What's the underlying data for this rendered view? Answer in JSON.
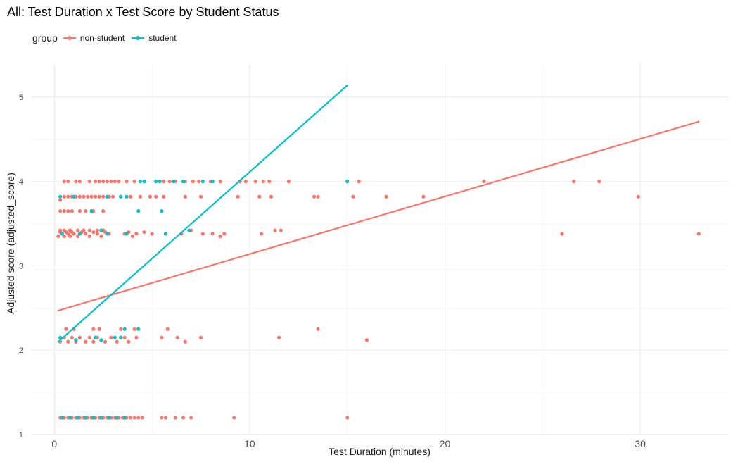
{
  "chart_data": {
    "type": "scatter",
    "title": "All: Test Duration x Test Score by Student Status",
    "xlabel": "Test Duration (minutes)",
    "ylabel": "Adjusted score (adjusted_score)",
    "xlim": [
      -1.2,
      34.5
    ],
    "ylim": [
      1,
      5.4
    ],
    "x_ticks": [
      0,
      10,
      20,
      30
    ],
    "y_ticks": [
      1,
      2,
      3,
      4,
      5
    ],
    "x_tick_labels": [
      "0",
      "10",
      "20",
      "30"
    ],
    "y_tick_labels": [
      "1",
      "2",
      "3",
      "4",
      "5"
    ],
    "grid": true,
    "legend_position": "top-left",
    "legend": {
      "title": "group",
      "entries": [
        "non-student",
        "student"
      ]
    },
    "series": [
      {
        "name": "non-student",
        "color": "#F8766D",
        "points": [
          [
            0.3,
            1.2
          ],
          [
            0.5,
            1.2
          ],
          [
            0.7,
            1.2
          ],
          [
            0.9,
            1.2
          ],
          [
            1.1,
            1.2
          ],
          [
            1.3,
            1.2
          ],
          [
            1.5,
            1.2
          ],
          [
            1.7,
            1.2
          ],
          [
            1.9,
            1.2
          ],
          [
            2.1,
            1.2
          ],
          [
            2.3,
            1.2
          ],
          [
            2.5,
            1.2
          ],
          [
            2.7,
            1.2
          ],
          [
            2.9,
            1.2
          ],
          [
            3.1,
            1.2
          ],
          [
            3.3,
            1.2
          ],
          [
            3.5,
            1.2
          ],
          [
            3.7,
            1.2
          ],
          [
            3.9,
            1.2
          ],
          [
            4.1,
            1.2
          ],
          [
            4.3,
            1.2
          ],
          [
            4.5,
            1.2
          ],
          [
            5.5,
            1.2
          ],
          [
            5.7,
            1.2
          ],
          [
            6.2,
            1.2
          ],
          [
            6.6,
            1.2
          ],
          [
            7.0,
            1.2
          ],
          [
            9.2,
            1.2
          ],
          [
            15.0,
            1.2
          ],
          [
            0.3,
            2.1
          ],
          [
            0.5,
            2.15
          ],
          [
            0.7,
            2.1
          ],
          [
            0.9,
            2.15
          ],
          [
            1.1,
            2.1
          ],
          [
            1.3,
            2.15
          ],
          [
            1.6,
            2.1
          ],
          [
            1.8,
            2.15
          ],
          [
            2.0,
            2.1
          ],
          [
            2.2,
            2.15
          ],
          [
            2.6,
            2.1
          ],
          [
            2.9,
            2.15
          ],
          [
            3.2,
            2.1
          ],
          [
            3.6,
            2.15
          ],
          [
            3.8,
            2.1
          ],
          [
            4.2,
            2.15
          ],
          [
            5.5,
            2.15
          ],
          [
            6.3,
            2.15
          ],
          [
            6.7,
            2.1
          ],
          [
            7.5,
            2.15
          ],
          [
            11.5,
            2.15
          ],
          [
            16.0,
            2.12
          ],
          [
            0.6,
            2.25
          ],
          [
            1.0,
            2.25
          ],
          [
            2.0,
            2.25
          ],
          [
            2.3,
            2.25
          ],
          [
            3.4,
            2.25
          ],
          [
            4.1,
            2.25
          ],
          [
            5.8,
            2.25
          ],
          [
            13.5,
            2.25
          ],
          [
            0.2,
            3.35
          ],
          [
            0.3,
            3.4
          ],
          [
            0.4,
            3.38
          ],
          [
            0.5,
            3.35
          ],
          [
            0.6,
            3.4
          ],
          [
            0.7,
            3.38
          ],
          [
            0.8,
            3.35
          ],
          [
            0.9,
            3.4
          ],
          [
            1.0,
            3.38
          ],
          [
            1.2,
            3.35
          ],
          [
            1.4,
            3.4
          ],
          [
            1.6,
            3.38
          ],
          [
            1.8,
            3.35
          ],
          [
            2.0,
            3.4
          ],
          [
            2.2,
            3.38
          ],
          [
            2.4,
            3.35
          ],
          [
            2.6,
            3.4
          ],
          [
            2.8,
            3.38
          ],
          [
            3.6,
            3.38
          ],
          [
            3.8,
            3.4
          ],
          [
            4.0,
            3.35
          ],
          [
            4.2,
            3.38
          ],
          [
            4.6,
            3.4
          ],
          [
            5.0,
            3.38
          ],
          [
            5.7,
            3.38
          ],
          [
            6.5,
            3.38
          ],
          [
            7.0,
            3.42
          ],
          [
            7.6,
            3.38
          ],
          [
            8.1,
            3.38
          ],
          [
            8.5,
            3.35
          ],
          [
            8.7,
            3.38
          ],
          [
            10.6,
            3.38
          ],
          [
            11.3,
            3.42
          ],
          [
            11.6,
            3.42
          ],
          [
            26.0,
            3.38
          ],
          [
            33.0,
            3.38
          ],
          [
            0.3,
            3.42
          ],
          [
            0.5,
            3.42
          ],
          [
            0.8,
            3.42
          ],
          [
            1.2,
            3.42
          ],
          [
            1.5,
            3.42
          ],
          [
            1.8,
            3.42
          ],
          [
            2.2,
            3.42
          ],
          [
            2.5,
            3.42
          ],
          [
            0.3,
            3.65
          ],
          [
            0.5,
            3.65
          ],
          [
            0.7,
            3.65
          ],
          [
            0.9,
            3.65
          ],
          [
            1.3,
            3.65
          ],
          [
            1.6,
            3.65
          ],
          [
            2.0,
            3.65
          ],
          [
            2.5,
            3.65
          ],
          [
            0.3,
            3.78
          ],
          [
            0.5,
            3.82
          ],
          [
            0.7,
            3.82
          ],
          [
            0.9,
            3.82
          ],
          [
            1.1,
            3.82
          ],
          [
            1.3,
            3.82
          ],
          [
            1.5,
            3.82
          ],
          [
            1.7,
            3.82
          ],
          [
            1.9,
            3.82
          ],
          [
            2.1,
            3.82
          ],
          [
            2.3,
            3.82
          ],
          [
            2.5,
            3.82
          ],
          [
            2.8,
            3.82
          ],
          [
            3.0,
            3.82
          ],
          [
            3.4,
            3.82
          ],
          [
            3.9,
            3.82
          ],
          [
            4.4,
            3.82
          ],
          [
            4.9,
            3.82
          ],
          [
            5.2,
            3.82
          ],
          [
            5.6,
            3.82
          ],
          [
            6.7,
            3.82
          ],
          [
            7.5,
            3.82
          ],
          [
            9.4,
            3.82
          ],
          [
            10.5,
            3.82
          ],
          [
            11.1,
            3.82
          ],
          [
            13.3,
            3.82
          ],
          [
            13.5,
            3.82
          ],
          [
            15.3,
            3.82
          ],
          [
            17.0,
            3.82
          ],
          [
            18.9,
            3.82
          ],
          [
            29.9,
            3.82
          ],
          [
            0.5,
            4.0
          ],
          [
            0.7,
            4.0
          ],
          [
            1.1,
            4.0
          ],
          [
            1.3,
            4.0
          ],
          [
            1.8,
            4.0
          ],
          [
            2.1,
            4.0
          ],
          [
            2.3,
            4.0
          ],
          [
            2.5,
            4.0
          ],
          [
            2.7,
            4.0
          ],
          [
            2.9,
            4.0
          ],
          [
            3.1,
            4.0
          ],
          [
            3.3,
            4.0
          ],
          [
            3.7,
            4.0
          ],
          [
            4.1,
            4.0
          ],
          [
            5.6,
            4.0
          ],
          [
            5.9,
            4.0
          ],
          [
            6.2,
            4.0
          ],
          [
            6.7,
            4.0
          ],
          [
            7.1,
            4.0
          ],
          [
            7.4,
            4.0
          ],
          [
            8.0,
            4.0
          ],
          [
            8.5,
            4.0
          ],
          [
            9.5,
            4.0
          ],
          [
            9.8,
            4.0
          ],
          [
            10.3,
            4.0
          ],
          [
            10.7,
            4.0
          ],
          [
            11.0,
            4.0
          ],
          [
            12.0,
            4.0
          ],
          [
            15.6,
            4.0
          ],
          [
            22.0,
            4.0
          ],
          [
            26.6,
            4.0
          ],
          [
            27.9,
            4.0
          ]
        ],
        "trend": {
          "x0": 0.2,
          "y0": 2.47,
          "x1": 33.0,
          "y1": 4.71
        }
      },
      {
        "name": "student",
        "color": "#00BFC4",
        "points": [
          [
            0.4,
            1.2
          ],
          [
            0.8,
            1.2
          ],
          [
            1.2,
            1.2
          ],
          [
            1.6,
            1.2
          ],
          [
            2.0,
            1.2
          ],
          [
            2.4,
            1.2
          ],
          [
            2.8,
            1.2
          ],
          [
            3.2,
            1.2
          ],
          [
            3.6,
            1.2
          ],
          [
            0.3,
            2.15
          ],
          [
            1.1,
            2.12
          ],
          [
            2.4,
            2.12
          ],
          [
            2.1,
            2.15
          ],
          [
            3.1,
            2.15
          ],
          [
            3.4,
            2.15
          ],
          [
            3.6,
            2.25
          ],
          [
            4.3,
            2.25
          ],
          [
            0.4,
            3.38
          ],
          [
            1.3,
            3.38
          ],
          [
            2.4,
            3.42
          ],
          [
            2.7,
            3.38
          ],
          [
            3.7,
            3.38
          ],
          [
            5.7,
            3.38
          ],
          [
            6.9,
            3.42
          ],
          [
            0.3,
            3.82
          ],
          [
            1.0,
            3.82
          ],
          [
            2.7,
            3.82
          ],
          [
            3.4,
            3.82
          ],
          [
            3.7,
            3.82
          ],
          [
            4.3,
            3.65
          ],
          [
            1.9,
            3.65
          ],
          [
            5.5,
            3.65
          ],
          [
            4.4,
            4.0
          ],
          [
            4.6,
            4.0
          ],
          [
            5.2,
            4.0
          ],
          [
            5.4,
            4.0
          ],
          [
            6.1,
            4.0
          ],
          [
            6.6,
            4.0
          ],
          [
            7.6,
            4.0
          ],
          [
            8.1,
            4.0
          ],
          [
            15.0,
            4.0
          ]
        ],
        "trend": {
          "x0": 0.2,
          "y0": 2.1,
          "x1": 15.0,
          "y1": 5.14
        }
      }
    ]
  }
}
